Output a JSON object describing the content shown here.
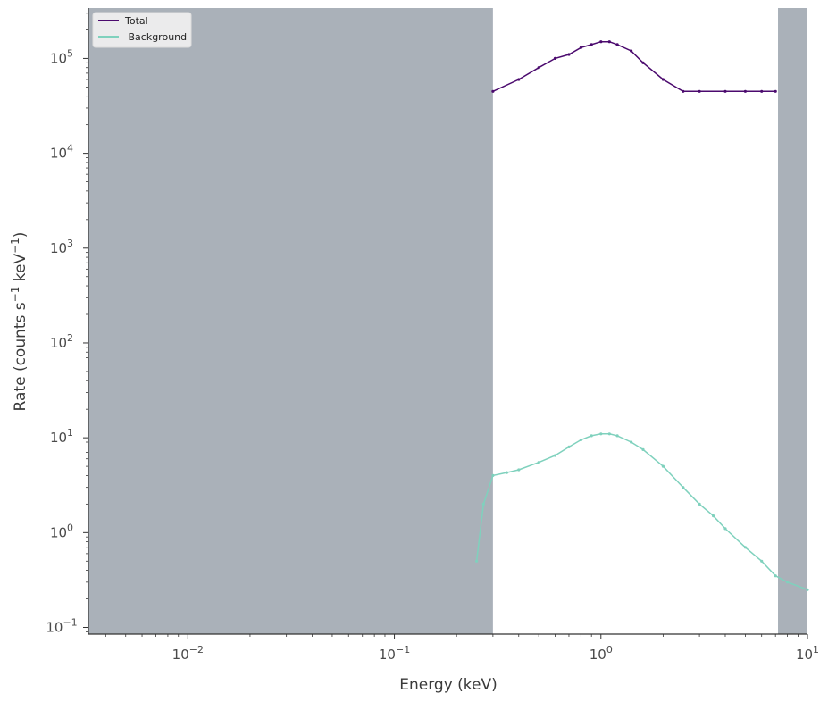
{
  "chart_data": {
    "type": "line",
    "x_scale": "log",
    "y_scale": "log",
    "xlim": [
      0.0033,
      10
    ],
    "ylim": [
      0.085,
      340000
    ],
    "xlabel": "Energy (keV)",
    "ylabel_prefix": "Rate (counts s",
    "ylabel_mid": " keV",
    "ylabel_suffix": ")",
    "ylabel_exp": "−1",
    "x_ticks": [
      {
        "value": 0.01,
        "base": "10",
        "exp": "−2"
      },
      {
        "value": 0.1,
        "base": "10",
        "exp": "−1"
      },
      {
        "value": 1,
        "base": "10",
        "exp": "0"
      },
      {
        "value": 10,
        "base": "10",
        "exp": "1"
      }
    ],
    "y_ticks": [
      {
        "value": 0.1,
        "base": "10",
        "exp": "−1"
      },
      {
        "value": 1,
        "base": "10",
        "exp": "0"
      },
      {
        "value": 10,
        "base": "10",
        "exp": "1"
      },
      {
        "value": 100,
        "base": "10",
        "exp": "2"
      },
      {
        "value": 1000,
        "base": "10",
        "exp": "3"
      },
      {
        "value": 10000,
        "base": "10",
        "exp": "4"
      },
      {
        "value": 100000,
        "base": "10",
        "exp": "5"
      }
    ],
    "shaded_regions": [
      {
        "from": 0.0033,
        "to": 0.3,
        "color": "#aab1b9"
      },
      {
        "from": 7.2,
        "to": 10,
        "color": "#aab1b9"
      }
    ],
    "legend": {
      "placement": "top-left",
      "entries": [
        {
          "label": "Total",
          "color": "#4b0a6e"
        },
        {
          "label": " Background",
          "color": "#7fd1bd"
        }
      ]
    },
    "series": [
      {
        "name": "Total",
        "color": "#4b0a6e",
        "x": [
          0.3,
          0.4,
          0.5,
          0.6,
          0.7,
          0.8,
          0.9,
          1.0,
          1.1,
          1.2,
          1.4,
          1.6,
          2.0,
          2.5,
          3.0,
          4.0,
          5.0,
          6.0,
          7.0
        ],
        "y": [
          45000,
          60000,
          80000,
          100000,
          110000,
          130000,
          140000,
          150000,
          150000,
          140000,
          120000,
          90000,
          60000,
          45000,
          45000,
          45000,
          45000,
          45000,
          45000
        ]
      },
      {
        "name": "Background",
        "color": "#7fd1bd",
        "x": [
          0.25,
          0.27,
          0.3,
          0.35,
          0.4,
          0.5,
          0.6,
          0.7,
          0.8,
          0.9,
          1.0,
          1.1,
          1.2,
          1.4,
          1.6,
          2.0,
          2.5,
          3.0,
          3.5,
          4.0,
          5.0,
          6.0,
          7.0,
          8.0,
          10.0
        ],
        "y": [
          0.5,
          2.0,
          4.0,
          4.3,
          4.6,
          5.5,
          6.5,
          8.0,
          9.5,
          10.5,
          11.0,
          11.0,
          10.5,
          9.0,
          7.5,
          5.0,
          3.0,
          2.0,
          1.5,
          1.1,
          0.7,
          0.5,
          0.35,
          0.3,
          0.25
        ]
      }
    ]
  }
}
